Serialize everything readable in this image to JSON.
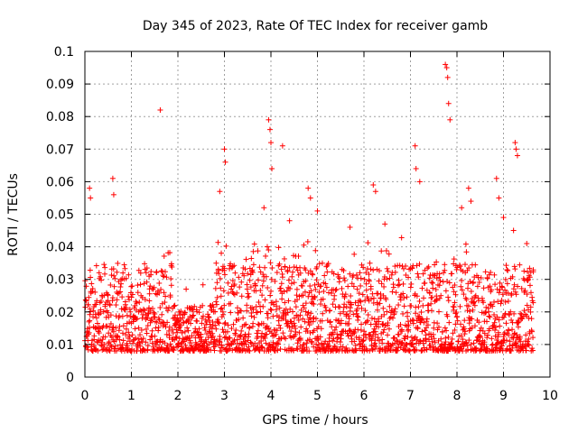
{
  "chart_data": {
    "type": "scatter",
    "title": "Day 345 of 2023, Rate Of TEC Index for receiver gamb",
    "xlabel": "GPS time / hours",
    "ylabel": "ROTI / TECUs",
    "xlim": [
      0,
      10
    ],
    "ylim": [
      0,
      0.1
    ],
    "x_ticks": [
      "0",
      "1",
      "2",
      "3",
      "4",
      "5",
      "6",
      "7",
      "8",
      "9",
      "10"
    ],
    "y_ticks": [
      "0",
      "0.01",
      "0.02",
      "0.03",
      "0.04",
      "0.05",
      "0.06",
      "0.07",
      "0.08",
      "0.09",
      "0.1"
    ],
    "grid": true,
    "marker": "+",
    "series_color": "#ff0000",
    "x_range_of_data_hours": [
      0,
      9.65
    ],
    "typical_value_range": [
      0.008,
      0.035
    ],
    "series": [
      {
        "name": "ROTI",
        "x": [
          1.62,
          3.0,
          3.02,
          3.95,
          3.98,
          4.0,
          4.02,
          4.25,
          4.8,
          4.85,
          5.7,
          6.2,
          6.25,
          7.1,
          7.12,
          7.2,
          7.75,
          7.78,
          7.8,
          7.82,
          7.85,
          8.25,
          8.3,
          8.85,
          8.9,
          9.25,
          9.27,
          9.3,
          0.1,
          0.12,
          0.6,
          0.62,
          2.9,
          3.85,
          4.4,
          5.0,
          6.45,
          8.1,
          9.0,
          9.5
        ],
        "y": [
          0.082,
          0.07,
          0.066,
          0.079,
          0.076,
          0.072,
          0.064,
          0.071,
          0.058,
          0.055,
          0.046,
          0.059,
          0.057,
          0.071,
          0.064,
          0.06,
          0.096,
          0.095,
          0.092,
          0.084,
          0.079,
          0.058,
          0.054,
          0.061,
          0.055,
          0.072,
          0.07,
          0.068,
          0.058,
          0.055,
          0.061,
          0.056,
          0.057,
          0.052,
          0.048,
          0.051,
          0.047,
          0.052,
          0.049,
          0.041
        ]
      }
    ]
  }
}
